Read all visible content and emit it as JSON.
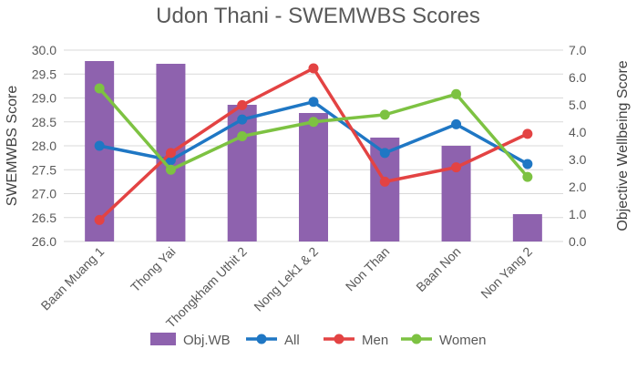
{
  "chart_data": {
    "type": "bar",
    "title": "Udon Thani - SWEMWBS Scores",
    "categories": [
      "Baan Muang 1",
      "Thong Yai",
      "Thongkham Uthit 2",
      "Nong Lek1 & 2",
      "Non Than",
      "Baan Non",
      "Non Yang 2"
    ],
    "ylabel": "SWEMWBS Score",
    "y2label": "Objective Wellbeing Score",
    "ylim": [
      26.0,
      30.0
    ],
    "y2lim": [
      0.0,
      7.0
    ],
    "yticks": [
      "26.0",
      "26.5",
      "27.0",
      "27.5",
      "28.0",
      "28.5",
      "29.0",
      "29.5",
      "30.0"
    ],
    "y2ticks": [
      "0.0",
      "1.0",
      "2.0",
      "3.0",
      "4.0",
      "5.0",
      "6.0",
      "7.0"
    ],
    "grid": true,
    "legend_position": "bottom",
    "bar_series": {
      "name": "Obj.WB",
      "axis": "secondary",
      "color": "#8e62ae",
      "values": [
        6.6,
        6.5,
        5.0,
        4.7,
        3.8,
        3.5,
        1.0
      ]
    },
    "series": [
      {
        "name": "All",
        "type": "line",
        "axis": "primary",
        "color": "#1f77c4",
        "values": [
          28.0,
          27.7,
          28.55,
          28.92,
          27.85,
          28.45,
          27.62
        ]
      },
      {
        "name": "Men",
        "type": "line",
        "axis": "primary",
        "color": "#e34343",
        "values": [
          26.45,
          27.85,
          28.85,
          29.62,
          27.25,
          27.55,
          28.25
        ]
      },
      {
        "name": "Women",
        "type": "line",
        "axis": "primary",
        "color": "#7dc242",
        "values": [
          29.2,
          27.5,
          28.2,
          28.5,
          28.65,
          29.08,
          27.35
        ]
      }
    ]
  }
}
